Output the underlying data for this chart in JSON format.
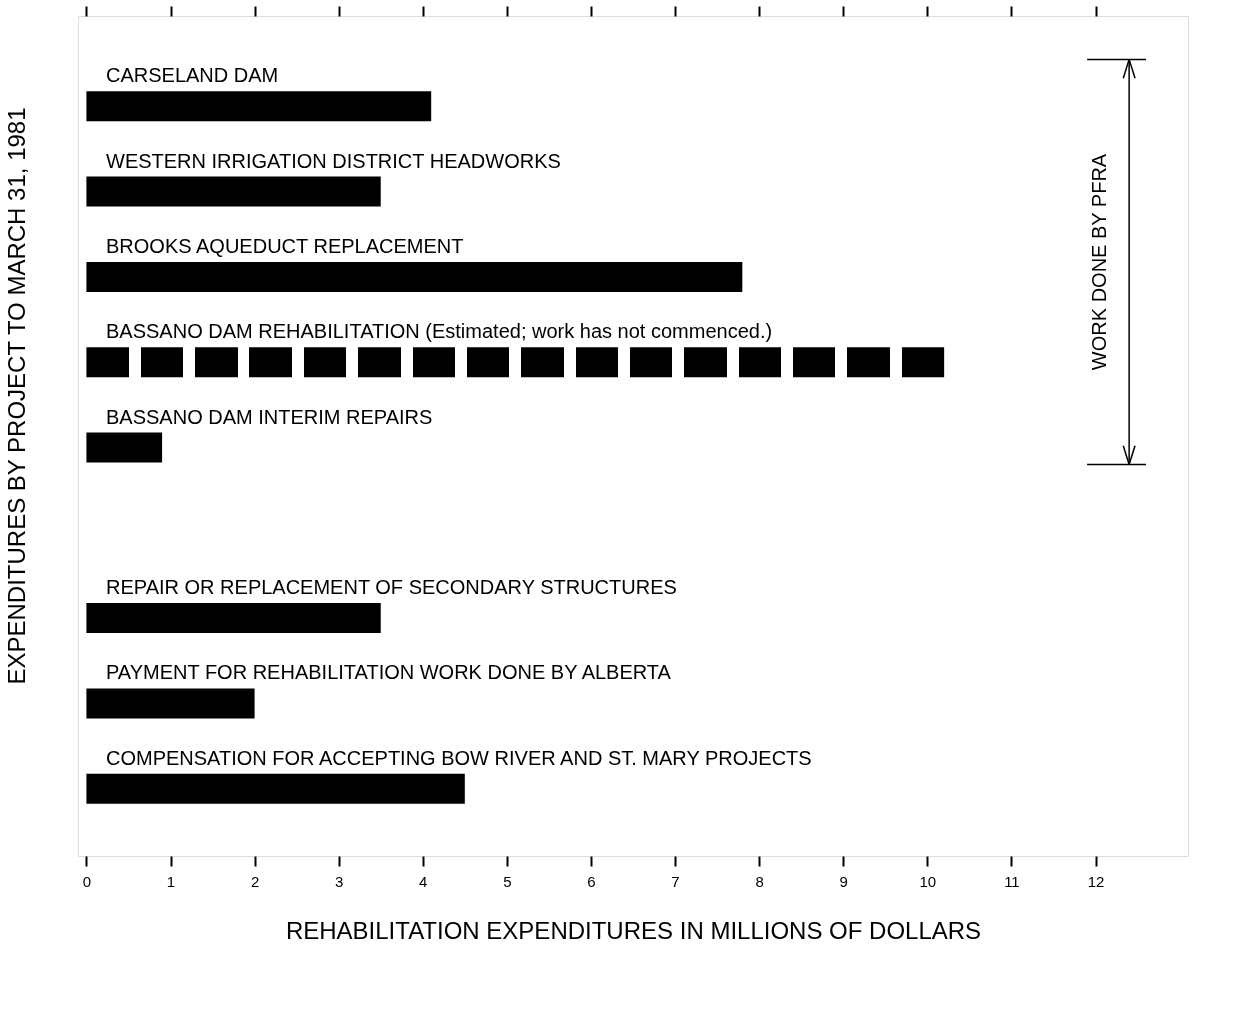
{
  "chart_data": {
    "type": "bar",
    "orientation": "horizontal",
    "xlabel": "REHABILITATION EXPENDITURES IN MILLIONS OF DOLLARS",
    "ylabel": "EXPENDITURES BY PROJECT TO MARCH 31, 1981",
    "categories": [
      "CARSELAND DAM",
      "WESTERN IRRIGATION DISTRICT HEADWORKS",
      "BROOKS AQUEDUCT REPLACEMENT",
      "BASSANO DAM REHABILITATION (Estimated; work has not commenced.)",
      "BASSANO DAM INTERIM REPAIRS",
      null,
      "REPAIR OR REPLACEMENT OF SECONDARY STRUCTURES",
      "PAYMENT FOR REHABILITATION WORK DONE BY ALBERTA",
      "COMPENSATION FOR ACCEPTING BOW RIVER AND ST. MARY PROJECTS"
    ],
    "series": [
      {
        "color": "#000000",
        "values": [
          4.1,
          3.5,
          7.8,
          null,
          0.9,
          null,
          3.5,
          2.0,
          4.5
        ]
      },
      {
        "color": "#000000",
        "line_style": "dashed",
        "values": [
          null,
          null,
          null,
          10.2,
          null,
          null,
          null,
          null,
          null
        ]
      }
    ],
    "xlim": [
      -0.1,
      13.1
    ],
    "xticks": [
      0,
      1,
      2,
      3,
      4,
      5,
      6,
      7,
      8,
      9,
      10,
      11,
      12
    ],
    "grid": false,
    "annotations": [
      "WORK DONE BY PFRA"
    ]
  }
}
